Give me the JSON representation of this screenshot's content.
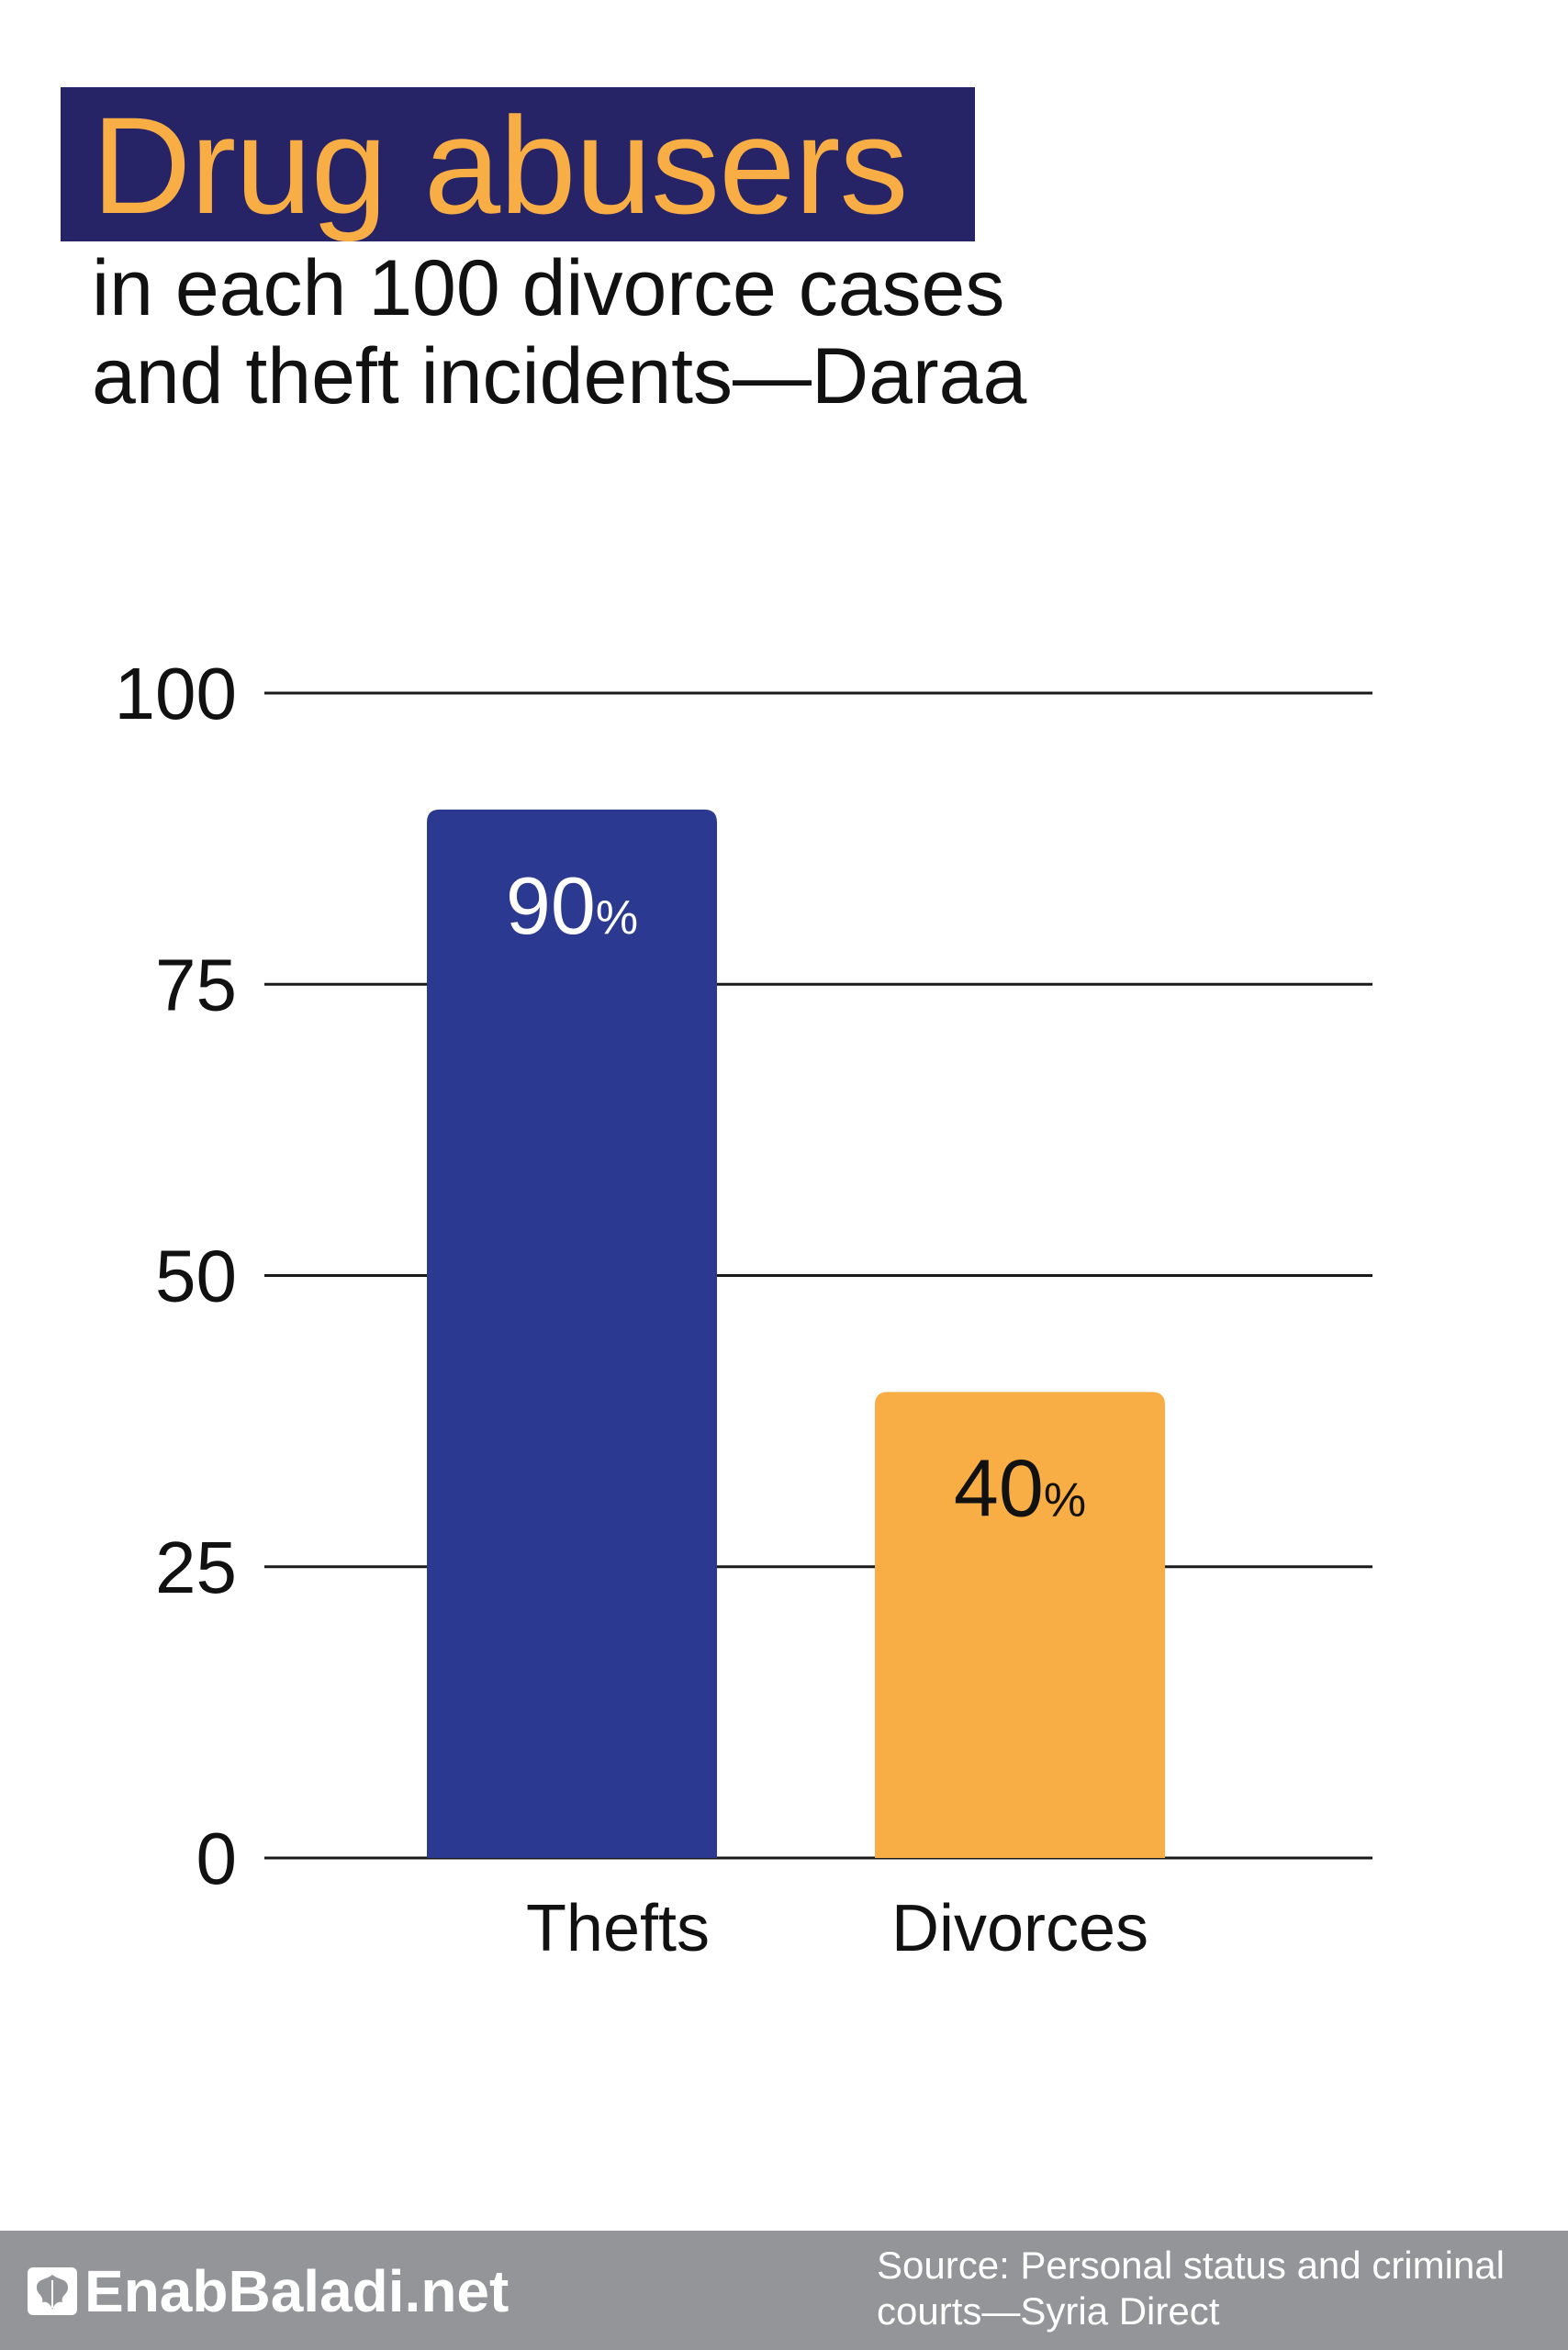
{
  "header": {
    "title": "Drug abusers",
    "subtitle_line1": "in each 100 divorce cases",
    "subtitle_line2": "and theft incidents—Daraa"
  },
  "chart_data": {
    "type": "bar",
    "categories": [
      "Thefts",
      "Divorces"
    ],
    "values": [
      90,
      40
    ],
    "value_labels": [
      "90",
      "40"
    ],
    "value_suffix": "%",
    "ylim": [
      0,
      100
    ],
    "yticks": [
      0,
      25,
      50,
      75,
      100
    ],
    "grid": true,
    "colors": [
      "#2b3990",
      "#f8ae44"
    ],
    "label_colors": [
      "#ffffff",
      "#111111"
    ]
  },
  "footer": {
    "brand": "EnabBaladi.net",
    "logo_icon": "grape-leaf-icon",
    "source_line1": "Source: Personal status and criminal",
    "source_line2": "courts—Syria Direct",
    "background": "#939598"
  }
}
